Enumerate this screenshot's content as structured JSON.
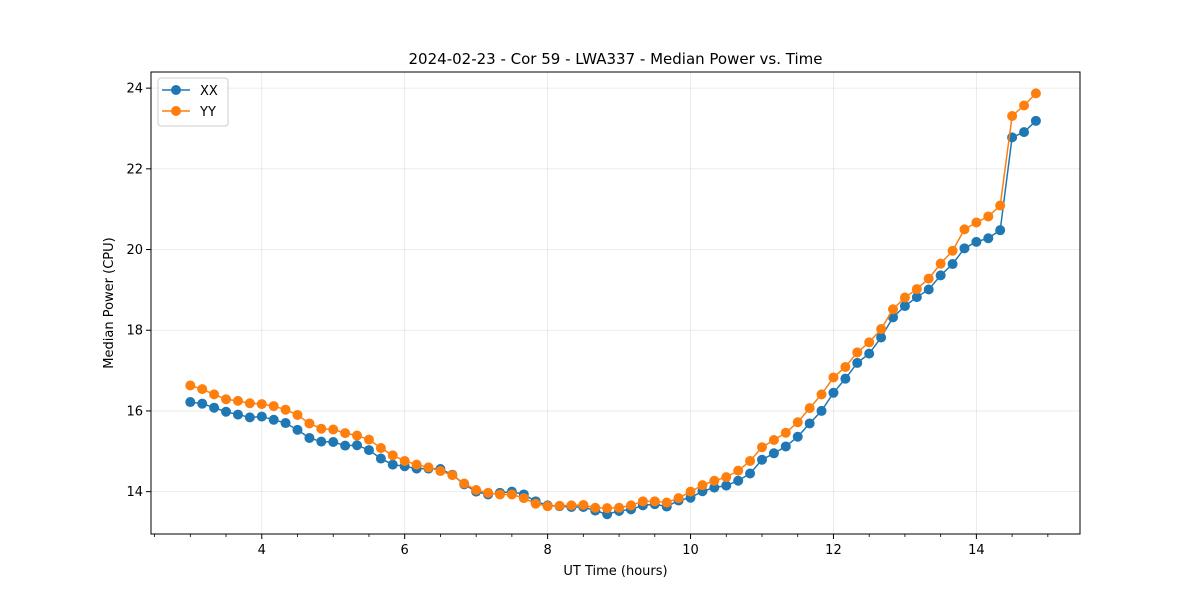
{
  "chart_data": {
    "type": "line",
    "title": "2024-02-23 - Cor 59 - LWA337 - Median Power vs. Time",
    "xlabel": "UT Time (hours)",
    "ylabel": "Median Power (CPU)",
    "xlim": [
      2.45,
      15.45
    ],
    "ylim": [
      12.95,
      24.4
    ],
    "xticks": [
      4,
      6,
      8,
      10,
      12,
      14
    ],
    "yticks": [
      14,
      16,
      18,
      20,
      22,
      24
    ],
    "grid": true,
    "legend_position": "top-left",
    "x": [
      3.0,
      3.167,
      3.333,
      3.5,
      3.667,
      3.833,
      4.0,
      4.167,
      4.333,
      4.5,
      4.667,
      4.833,
      5.0,
      5.167,
      5.333,
      5.5,
      5.667,
      5.833,
      6.0,
      6.167,
      6.333,
      6.5,
      6.667,
      6.833,
      7.0,
      7.167,
      7.333,
      7.5,
      7.667,
      7.833,
      8.0,
      8.167,
      8.333,
      8.5,
      8.667,
      8.833,
      9.0,
      9.167,
      9.333,
      9.5,
      9.667,
      9.833,
      10.0,
      10.167,
      10.333,
      10.5,
      10.667,
      10.833,
      11.0,
      11.167,
      11.333,
      11.5,
      11.667,
      11.833,
      12.0,
      12.167,
      12.333,
      12.5,
      12.667,
      12.833,
      13.0,
      13.167,
      13.333,
      13.5,
      13.667,
      13.833,
      14.0,
      14.167,
      14.333,
      14.5,
      14.667,
      14.833
    ],
    "series": [
      {
        "name": "XX",
        "color": "#1f77b4",
        "values": [
          16.22,
          16.18,
          16.08,
          15.98,
          15.91,
          15.84,
          15.86,
          15.78,
          15.7,
          15.53,
          15.33,
          15.24,
          15.23,
          15.14,
          15.15,
          15.03,
          14.82,
          14.67,
          14.63,
          14.57,
          14.57,
          14.56,
          14.42,
          14.18,
          14.0,
          13.93,
          13.97,
          14.0,
          13.93,
          13.76,
          13.66,
          13.64,
          13.62,
          13.62,
          13.53,
          13.44,
          13.52,
          13.56,
          13.66,
          13.69,
          13.63,
          13.78,
          13.85,
          14.01,
          14.1,
          14.15,
          14.27,
          14.45,
          14.79,
          14.95,
          15.12,
          15.36,
          15.69,
          16.0,
          16.45,
          16.8,
          17.19,
          17.42,
          17.82,
          18.32,
          18.6,
          18.82,
          19.01,
          19.36,
          19.64,
          20.03,
          20.19,
          20.28,
          20.48,
          22.78,
          22.91,
          23.19
        ]
      },
      {
        "name": "YY",
        "color": "#ff7f0e",
        "values": [
          16.63,
          16.54,
          16.41,
          16.29,
          16.25,
          16.19,
          16.17,
          16.12,
          16.03,
          15.9,
          15.69,
          15.56,
          15.54,
          15.45,
          15.39,
          15.29,
          15.08,
          14.9,
          14.76,
          14.67,
          14.6,
          14.51,
          14.41,
          14.2,
          14.04,
          13.97,
          13.93,
          13.93,
          13.84,
          13.7,
          13.64,
          13.65,
          13.66,
          13.67,
          13.6,
          13.59,
          13.6,
          13.66,
          13.76,
          13.76,
          13.73,
          13.84,
          14.0,
          14.16,
          14.27,
          14.36,
          14.52,
          14.76,
          15.1,
          15.28,
          15.46,
          15.72,
          16.07,
          16.41,
          16.83,
          17.09,
          17.45,
          17.7,
          18.03,
          18.52,
          18.81,
          19.02,
          19.28,
          19.65,
          19.97,
          20.5,
          20.67,
          20.82,
          21.09,
          23.31,
          23.57,
          23.87
        ]
      }
    ]
  }
}
